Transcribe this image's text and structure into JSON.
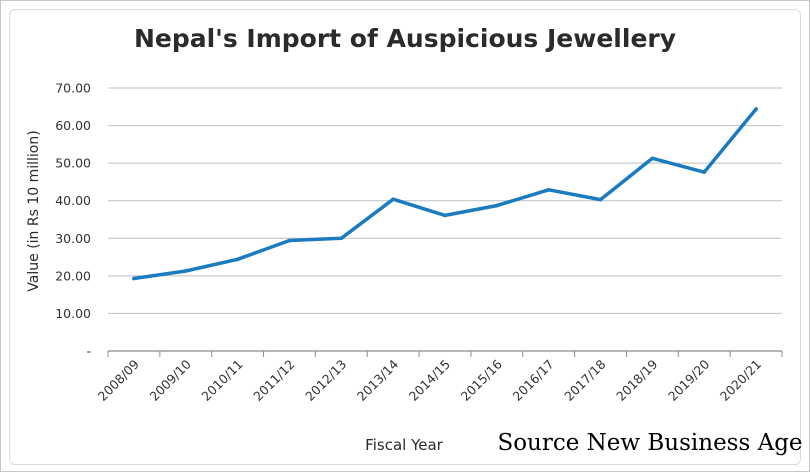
{
  "chart_data": {
    "type": "line",
    "title": "Nepal's Import of Auspicious Jewellery",
    "xlabel": "Fiscal Year",
    "ylabel": "Value (in Rs 10 million)",
    "categories": [
      "2008/09",
      "2009/10",
      "2010/11",
      "2011/12",
      "2012/13",
      "2013/14",
      "2014/15",
      "2015/16",
      "2016/17",
      "2017/18",
      "2018/19",
      "2019/20",
      "2020/21"
    ],
    "values": [
      19.3,
      21.3,
      24.4,
      29.4,
      30.0,
      40.4,
      36.1,
      38.7,
      42.9,
      40.3,
      51.3,
      47.6,
      64.4
    ],
    "ylim": [
      0,
      70
    ],
    "yticks": [
      "-",
      "10.00",
      "20.00",
      "30.00",
      "40.00",
      "50.00",
      "60.00",
      "70.00"
    ],
    "grid": true,
    "legend": "none",
    "line_color": "#1a7bbf",
    "grid_color": "#bfbfbf"
  },
  "source_note": "Source New Business Age"
}
